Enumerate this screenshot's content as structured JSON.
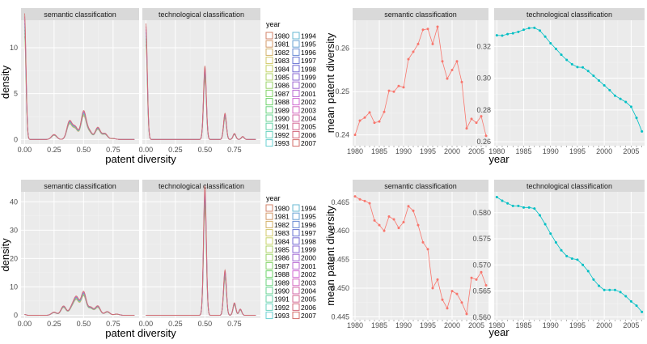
{
  "chart_data": [
    {
      "type": "line",
      "kind": "density",
      "facets": [
        "semantic classification",
        "technological classification"
      ],
      "xlabel": "patent diversity",
      "ylabel": "density",
      "xlim": [
        -0.03,
        0.97
      ],
      "ylim": [
        -0.5,
        13
      ],
      "x_ticks": [
        "0.00",
        "0.25",
        "0.50",
        "0.75"
      ],
      "y_ticks": [
        "0",
        "5",
        "10"
      ],
      "legend_title": "year",
      "legend_years": [
        "1980",
        "1981",
        "1982",
        "1983",
        "1984",
        "1985",
        "1986",
        "1987",
        "1988",
        "1989",
        "1990",
        "1991",
        "1992",
        "1993",
        "1994",
        "1995",
        "1996",
        "1997",
        "1998",
        "1999",
        "2000",
        "2001",
        "2002",
        "2003",
        "2004",
        "2005",
        "2006",
        "2007"
      ],
      "semantic_peaks": [
        [
          0.0,
          12.5
        ],
        [
          0.25,
          0.5
        ],
        [
          0.38,
          1.8
        ],
        [
          0.43,
          1.2
        ],
        [
          0.5,
          2.8
        ],
        [
          0.55,
          0.8
        ],
        [
          0.62,
          1.2
        ],
        [
          0.68,
          0.6
        ],
        [
          0.75,
          0.1
        ]
      ],
      "technological_peaks": [
        [
          0.0,
          11.5
        ],
        [
          0.5,
          7.3
        ],
        [
          0.67,
          2.6
        ],
        [
          0.75,
          0.6
        ],
        [
          0.82,
          0.3
        ]
      ]
    },
    {
      "type": "line",
      "facets": [
        "semantic classification",
        "technological classification"
      ],
      "xlabel": "year",
      "ylabel": "mean patent diversity",
      "x_ticks": [
        "1980",
        "1985",
        "1990",
        "1995",
        "2000",
        "2005"
      ],
      "xlim": [
        1979.5,
        2007.5
      ],
      "series": [
        {
          "facet": "semantic classification",
          "color": "#F8766D",
          "ylim": [
            0.2375,
            0.2665
          ],
          "y_ticks": [
            "0.24",
            "0.25",
            "0.26"
          ],
          "x": [
            1980,
            1981,
            1982,
            1983,
            1984,
            1985,
            1986,
            1987,
            1988,
            1989,
            1990,
            1991,
            1992,
            1993,
            1994,
            1995,
            1996,
            1997,
            1998,
            1999,
            2000,
            2001,
            2002,
            2003,
            2004,
            2005,
            2006,
            2007
          ],
          "values": [
            0.24,
            0.2433,
            0.244,
            0.2452,
            0.2428,
            0.2431,
            0.2453,
            0.2502,
            0.25,
            0.2513,
            0.251,
            0.2575,
            0.2592,
            0.261,
            0.2643,
            0.2645,
            0.261,
            0.265,
            0.257,
            0.253,
            0.255,
            0.257,
            0.2522,
            0.2415,
            0.2437,
            0.2428,
            0.2443,
            0.2398
          ]
        },
        {
          "facet": "technological classification",
          "color": "#00BFC4",
          "ylim": [
            0.2575,
            0.3365
          ],
          "y_ticks": [
            "0.26",
            "0.28",
            "0.30",
            "0.32"
          ],
          "x": [
            1980,
            1981,
            1982,
            1983,
            1984,
            1985,
            1986,
            1987,
            1988,
            1989,
            1990,
            1991,
            1992,
            1993,
            1994,
            1995,
            1996,
            1997,
            1998,
            1999,
            2000,
            2001,
            2002,
            2003,
            2004,
            2005,
            2006,
            2007
          ],
          "values": [
            0.327,
            0.3268,
            0.3278,
            0.3283,
            0.3292,
            0.3305,
            0.3315,
            0.3317,
            0.33,
            0.3262,
            0.322,
            0.3185,
            0.3148,
            0.3115,
            0.3088,
            0.307,
            0.3068,
            0.3045,
            0.3015,
            0.2985,
            0.2955,
            0.2925,
            0.289,
            0.287,
            0.285,
            0.282,
            0.275,
            0.2665
          ]
        }
      ]
    },
    {
      "type": "line",
      "kind": "density",
      "facets": [
        "semantic classification",
        "technological classification"
      ],
      "xlabel": "patent diversity",
      "ylabel": "density",
      "xlim": [
        -0.03,
        0.97
      ],
      "ylim": [
        -1,
        43.5
      ],
      "x_ticks": [
        "0.00",
        "0.25",
        "0.50",
        "0.75"
      ],
      "y_ticks": [
        "0",
        "10",
        "20",
        "30",
        "40"
      ],
      "legend_title": "year",
      "legend_years": [
        "1980",
        "1981",
        "1982",
        "1983",
        "1984",
        "1985",
        "1986",
        "1987",
        "1988",
        "1989",
        "1990",
        "1991",
        "1992",
        "1993",
        "1994",
        "1995",
        "1996",
        "1997",
        "1998",
        "1999",
        "2000",
        "2001",
        "2002",
        "2003",
        "2004",
        "2005",
        "2006",
        "2007"
      ],
      "semantic_peaks": [
        [
          0.0,
          0.3
        ],
        [
          0.25,
          1.0
        ],
        [
          0.33,
          3.0
        ],
        [
          0.4,
          2.5
        ],
        [
          0.44,
          5.5
        ],
        [
          0.5,
          7.5
        ],
        [
          0.56,
          2.5
        ],
        [
          0.62,
          3.0
        ],
        [
          0.7,
          1.2
        ],
        [
          0.78,
          0.4
        ]
      ],
      "technological_peaks": [
        [
          0.5,
          41.5
        ],
        [
          0.67,
          14.5
        ],
        [
          0.75,
          4.0
        ],
        [
          0.8,
          2.0
        ]
      ]
    },
    {
      "type": "line",
      "facets": [
        "semantic classification",
        "technological classification"
      ],
      "xlabel": "year",
      "ylabel": "mean patent diversity",
      "x_ticks": [
        "1980",
        "1985",
        "1990",
        "1995",
        "2000",
        "2005"
      ],
      "xlim": [
        1979.5,
        2007.5
      ],
      "series": [
        {
          "facet": "semantic classification",
          "color": "#F8766D",
          "ylim": [
            0.4445,
            0.4668
          ],
          "y_ticks": [
            "0.445",
            "0.450",
            "0.455",
            "0.460",
            "0.465"
          ],
          "x": [
            1980,
            1981,
            1982,
            1983,
            1984,
            1985,
            1986,
            1987,
            1988,
            1989,
            1990,
            1991,
            1992,
            1993,
            1994,
            1995,
            1996,
            1997,
            1998,
            1999,
            2000,
            2001,
            2002,
            2003,
            2004,
            2005,
            2006,
            2007
          ],
          "values": [
            0.466,
            0.4655,
            0.4652,
            0.4648,
            0.4618,
            0.461,
            0.46,
            0.4625,
            0.462,
            0.4605,
            0.4615,
            0.4643,
            0.4635,
            0.461,
            0.458,
            0.4568,
            0.45,
            0.4515,
            0.448,
            0.4465,
            0.4495,
            0.449,
            0.4475,
            0.4455,
            0.4518,
            0.4515,
            0.4528,
            0.4505
          ]
        },
        {
          "facet": "technological classification",
          "color": "#00BFC4",
          "ylim": [
            0.5595,
            0.584
          ],
          "y_ticks": [
            "0.560",
            "0.565",
            "0.570",
            "0.575",
            "0.580"
          ],
          "x": [
            1980,
            1981,
            1982,
            1983,
            1984,
            1985,
            1986,
            1987,
            1988,
            1989,
            1990,
            1991,
            1992,
            1993,
            1994,
            1995,
            1996,
            1997,
            1998,
            1999,
            2000,
            2001,
            2002,
            2003,
            2004,
            2005,
            2006,
            2007
          ],
          "values": [
            0.583,
            0.5823,
            0.5818,
            0.5813,
            0.5813,
            0.581,
            0.581,
            0.5808,
            0.5795,
            0.5778,
            0.576,
            0.5743,
            0.5728,
            0.5717,
            0.5712,
            0.571,
            0.57,
            0.5688,
            0.5672,
            0.566,
            0.5652,
            0.5652,
            0.5652,
            0.5648,
            0.564,
            0.563,
            0.5622,
            0.561
          ]
        }
      ]
    }
  ]
}
